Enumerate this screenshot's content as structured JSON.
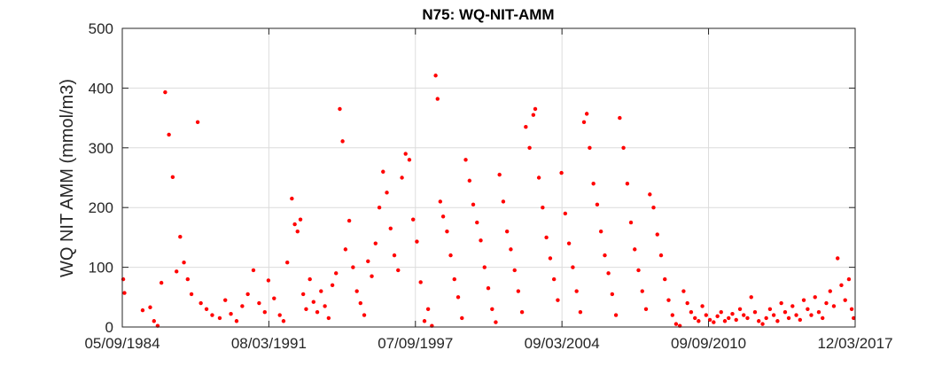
{
  "chart_data": {
    "type": "scatter",
    "title": "N75: WQ-NIT-AMM",
    "xlabel": "",
    "ylabel": "WQ NIT AMM (mmol/m3)",
    "xlim": [
      "1984-09-05",
      "2017-03-12"
    ],
    "ylim": [
      0,
      500
    ],
    "x_ticks": [
      "05/09/1984",
      "08/03/1991",
      "07/09/1997",
      "09/03/2004",
      "09/09/2010",
      "12/03/2017"
    ],
    "y_ticks": [
      0,
      100,
      200,
      300,
      400,
      500
    ],
    "grid": true,
    "legend": "none",
    "marker_color": "#ff0000",
    "series": [
      {
        "points": [
          [
            "1984-09-20",
            80
          ],
          [
            "1984-10-10",
            57
          ],
          [
            "1985-08-01",
            28
          ],
          [
            "1985-12-01",
            33
          ],
          [
            "1986-02-01",
            10
          ],
          [
            "1986-04-01",
            2
          ],
          [
            "1986-06-01",
            74
          ],
          [
            "1986-08-01",
            393
          ],
          [
            "1986-10-01",
            322
          ],
          [
            "1986-12-01",
            251
          ],
          [
            "1987-02-01",
            93
          ],
          [
            "1987-04-01",
            151
          ],
          [
            "1987-06-01",
            108
          ],
          [
            "1987-08-01",
            80
          ],
          [
            "1987-10-01",
            55
          ],
          [
            "1988-01-10",
            343
          ],
          [
            "1988-03-01",
            40
          ],
          [
            "1988-06-01",
            30
          ],
          [
            "1988-09-01",
            20
          ],
          [
            "1989-01-01",
            15
          ],
          [
            "1989-04-01",
            45
          ],
          [
            "1989-07-01",
            22
          ],
          [
            "1989-10-01",
            10
          ],
          [
            "1990-01-01",
            35
          ],
          [
            "1990-04-01",
            55
          ],
          [
            "1990-07-01",
            95
          ],
          [
            "1990-10-01",
            40
          ],
          [
            "1991-01-01",
            25
          ],
          [
            "1991-03-01",
            78
          ],
          [
            "1991-06-01",
            48
          ],
          [
            "1991-09-01",
            20
          ],
          [
            "1991-11-01",
            10
          ],
          [
            "1992-01-01",
            108
          ],
          [
            "1992-03-15",
            215
          ],
          [
            "1992-05-01",
            172
          ],
          [
            "1992-06-15",
            160
          ],
          [
            "1992-08-01",
            180
          ],
          [
            "1992-09-15",
            55
          ],
          [
            "1992-11-01",
            30
          ],
          [
            "1993-01-01",
            80
          ],
          [
            "1993-03-01",
            42
          ],
          [
            "1993-05-01",
            25
          ],
          [
            "1993-07-01",
            60
          ],
          [
            "1993-09-01",
            35
          ],
          [
            "1993-11-01",
            15
          ],
          [
            "1994-01-01",
            70
          ],
          [
            "1994-03-01",
            90
          ],
          [
            "1994-05-01",
            365
          ],
          [
            "1994-06-15",
            311
          ],
          [
            "1994-08-01",
            130
          ],
          [
            "1994-10-01",
            178
          ],
          [
            "1994-12-01",
            100
          ],
          [
            "1995-02-01",
            60
          ],
          [
            "1995-04-01",
            40
          ],
          [
            "1995-06-01",
            20
          ],
          [
            "1995-08-01",
            110
          ],
          [
            "1995-10-01",
            85
          ],
          [
            "1995-12-01",
            140
          ],
          [
            "1996-02-01",
            200
          ],
          [
            "1996-04-01",
            260
          ],
          [
            "1996-06-01",
            225
          ],
          [
            "1996-08-01",
            165
          ],
          [
            "1996-10-01",
            120
          ],
          [
            "1996-12-01",
            95
          ],
          [
            "1997-02-01",
            250
          ],
          [
            "1997-04-01",
            290
          ],
          [
            "1997-06-01",
            280
          ],
          [
            "1997-08-01",
            180
          ],
          [
            "1997-10-01",
            143
          ],
          [
            "1997-12-01",
            75
          ],
          [
            "1998-02-01",
            10
          ],
          [
            "1998-04-01",
            30
          ],
          [
            "1998-06-01",
            2
          ],
          [
            "1998-08-01",
            421
          ],
          [
            "1998-09-01",
            382
          ],
          [
            "1998-10-15",
            210
          ],
          [
            "1998-12-01",
            185
          ],
          [
            "1999-02-01",
            160
          ],
          [
            "1999-04-01",
            120
          ],
          [
            "1999-06-01",
            80
          ],
          [
            "1999-08-01",
            50
          ],
          [
            "1999-10-01",
            15
          ],
          [
            "1999-12-01",
            280
          ],
          [
            "2000-02-01",
            245
          ],
          [
            "2000-04-01",
            205
          ],
          [
            "2000-06-01",
            175
          ],
          [
            "2000-08-01",
            145
          ],
          [
            "2000-10-01",
            100
          ],
          [
            "2000-12-01",
            65
          ],
          [
            "2001-02-01",
            30
          ],
          [
            "2001-04-01",
            8
          ],
          [
            "2001-06-01",
            255
          ],
          [
            "2001-08-01",
            210
          ],
          [
            "2001-10-01",
            160
          ],
          [
            "2001-12-01",
            130
          ],
          [
            "2002-02-01",
            95
          ],
          [
            "2002-04-01",
            60
          ],
          [
            "2002-06-01",
            25
          ],
          [
            "2002-08-01",
            335
          ],
          [
            "2002-10-01",
            300
          ],
          [
            "2002-12-01",
            355
          ],
          [
            "2003-01-01",
            365
          ],
          [
            "2003-03-01",
            250
          ],
          [
            "2003-05-01",
            200
          ],
          [
            "2003-07-01",
            150
          ],
          [
            "2003-09-01",
            115
          ],
          [
            "2003-11-01",
            80
          ],
          [
            "2004-01-01",
            45
          ],
          [
            "2004-03-01",
            258
          ],
          [
            "2004-05-01",
            190
          ],
          [
            "2004-07-01",
            140
          ],
          [
            "2004-09-01",
            100
          ],
          [
            "2004-11-01",
            60
          ],
          [
            "2005-01-01",
            25
          ],
          [
            "2005-03-01",
            343
          ],
          [
            "2005-04-15",
            357
          ],
          [
            "2005-06-01",
            300
          ],
          [
            "2005-08-01",
            240
          ],
          [
            "2005-10-01",
            205
          ],
          [
            "2005-12-01",
            160
          ],
          [
            "2006-02-01",
            120
          ],
          [
            "2006-04-01",
            90
          ],
          [
            "2006-06-01",
            55
          ],
          [
            "2006-08-01",
            20
          ],
          [
            "2006-10-01",
            350
          ],
          [
            "2006-12-01",
            300
          ],
          [
            "2007-02-01",
            240
          ],
          [
            "2007-04-01",
            175
          ],
          [
            "2007-06-01",
            130
          ],
          [
            "2007-08-01",
            95
          ],
          [
            "2007-10-01",
            60
          ],
          [
            "2007-12-01",
            30
          ],
          [
            "2008-02-01",
            222
          ],
          [
            "2008-04-01",
            200
          ],
          [
            "2008-06-01",
            155
          ],
          [
            "2008-08-01",
            120
          ],
          [
            "2008-10-01",
            80
          ],
          [
            "2008-12-01",
            45
          ],
          [
            "2009-02-01",
            20
          ],
          [
            "2009-04-01",
            5
          ],
          [
            "2009-06-01",
            2
          ],
          [
            "2009-08-01",
            60
          ],
          [
            "2009-10-01",
            40
          ],
          [
            "2009-12-01",
            25
          ],
          [
            "2010-02-01",
            15
          ],
          [
            "2010-04-01",
            10
          ],
          [
            "2010-06-01",
            35
          ],
          [
            "2010-08-01",
            20
          ],
          [
            "2010-10-01",
            12
          ],
          [
            "2010-12-01",
            8
          ],
          [
            "2011-02-01",
            18
          ],
          [
            "2011-04-01",
            25
          ],
          [
            "2011-06-01",
            10
          ],
          [
            "2011-08-01",
            15
          ],
          [
            "2011-10-01",
            22
          ],
          [
            "2011-12-01",
            12
          ],
          [
            "2012-02-01",
            30
          ],
          [
            "2012-04-01",
            20
          ],
          [
            "2012-06-01",
            15
          ],
          [
            "2012-08-01",
            50
          ],
          [
            "2012-10-01",
            25
          ],
          [
            "2012-12-01",
            10
          ],
          [
            "2013-02-01",
            5
          ],
          [
            "2013-04-01",
            15
          ],
          [
            "2013-06-01",
            30
          ],
          [
            "2013-08-01",
            20
          ],
          [
            "2013-10-01",
            10
          ],
          [
            "2013-12-01",
            40
          ],
          [
            "2014-02-01",
            25
          ],
          [
            "2014-04-01",
            15
          ],
          [
            "2014-06-01",
            35
          ],
          [
            "2014-08-01",
            20
          ],
          [
            "2014-10-01",
            12
          ],
          [
            "2014-12-01",
            45
          ],
          [
            "2015-02-01",
            30
          ],
          [
            "2015-04-01",
            20
          ],
          [
            "2015-06-01",
            50
          ],
          [
            "2015-08-01",
            25
          ],
          [
            "2015-10-01",
            15
          ],
          [
            "2015-12-01",
            40
          ],
          [
            "2016-02-01",
            60
          ],
          [
            "2016-04-01",
            35
          ],
          [
            "2016-06-01",
            115
          ],
          [
            "2016-08-01",
            70
          ],
          [
            "2016-10-01",
            45
          ],
          [
            "2016-12-01",
            80
          ],
          [
            "2017-01-15",
            30
          ],
          [
            "2017-02-15",
            15
          ]
        ]
      }
    ]
  }
}
